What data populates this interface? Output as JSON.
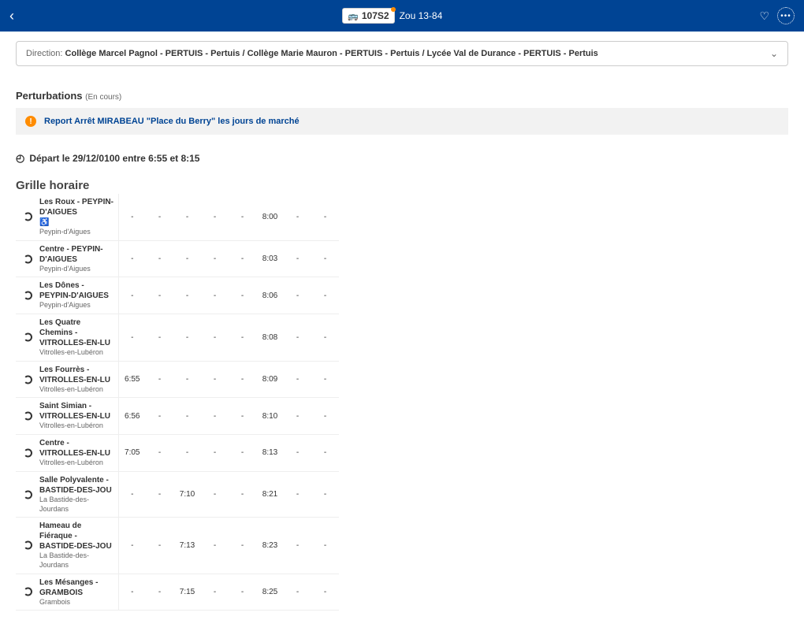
{
  "header": {
    "route_number": "107S2",
    "route_name": "Zou 13-84"
  },
  "direction": {
    "label": "Direction:",
    "value": "Collège Marcel Pagnol - PERTUIS - Pertuis / Collège Marie Mauron - PERTUIS - Pertuis / Lycée Val de Durance - PERTUIS - Pertuis"
  },
  "perturbations": {
    "title": "Perturbations",
    "sub": "(En cours)",
    "alert": "Report Arrêt MIRABEAU \"Place du Berry\" les jours de marché"
  },
  "depart": "Départ le 29/12/0100 entre 6:55 et 8:15",
  "grille_title": "Grille horaire",
  "stops": [
    {
      "name": "Les Roux - PEYPIN-D'AIGUES",
      "city": "Peypin-d'Aigues",
      "acc": true,
      "times": [
        "-",
        "-",
        "-",
        "-",
        "-",
        "8:00",
        "-",
        "-"
      ]
    },
    {
      "name": "Centre - PEYPIN-D'AIGUES",
      "city": "Peypin-d'Aigues",
      "acc": false,
      "times": [
        "-",
        "-",
        "-",
        "-",
        "-",
        "8:03",
        "-",
        "-"
      ]
    },
    {
      "name": "Les Dônes - PEYPIN-D'AIGUES",
      "city": "Peypin-d'Aigues",
      "acc": false,
      "times": [
        "-",
        "-",
        "-",
        "-",
        "-",
        "8:06",
        "-",
        "-"
      ]
    },
    {
      "name": "Les Quatre Chemins - VITROLLES-EN-LU",
      "city": "Vitrolles-en-Lubéron",
      "acc": false,
      "times": [
        "-",
        "-",
        "-",
        "-",
        "-",
        "8:08",
        "-",
        "-"
      ]
    },
    {
      "name": "Les Fourrès - VITROLLES-EN-LU",
      "city": "Vitrolles-en-Lubéron",
      "acc": false,
      "times": [
        "6:55",
        "-",
        "-",
        "-",
        "-",
        "8:09",
        "-",
        "-"
      ]
    },
    {
      "name": "Saint Simian - VITROLLES-EN-LU",
      "city": "Vitrolles-en-Lubéron",
      "acc": false,
      "times": [
        "6:56",
        "-",
        "-",
        "-",
        "-",
        "8:10",
        "-",
        "-"
      ]
    },
    {
      "name": "Centre - VITROLLES-EN-LU",
      "city": "Vitrolles-en-Lubéron",
      "acc": false,
      "times": [
        "7:05",
        "-",
        "-",
        "-",
        "-",
        "8:13",
        "-",
        "-"
      ]
    },
    {
      "name": "Salle Polyvalente - BASTIDE-DES-JOU",
      "city": "La Bastide-des-Jourdans",
      "acc": false,
      "times": [
        "-",
        "-",
        "7:10",
        "-",
        "-",
        "8:21",
        "-",
        "-"
      ]
    },
    {
      "name": "Hameau de Fiéraque - BASTIDE-DES-JOU",
      "city": "La Bastide-des-Jourdans",
      "acc": false,
      "times": [
        "-",
        "-",
        "7:13",
        "-",
        "-",
        "8:23",
        "-",
        "-"
      ]
    },
    {
      "name": "Les Mésanges - GRAMBOIS",
      "city": "Grambois",
      "acc": false,
      "times": [
        "-",
        "-",
        "7:15",
        "-",
        "-",
        "8:25",
        "-",
        "-"
      ]
    }
  ]
}
